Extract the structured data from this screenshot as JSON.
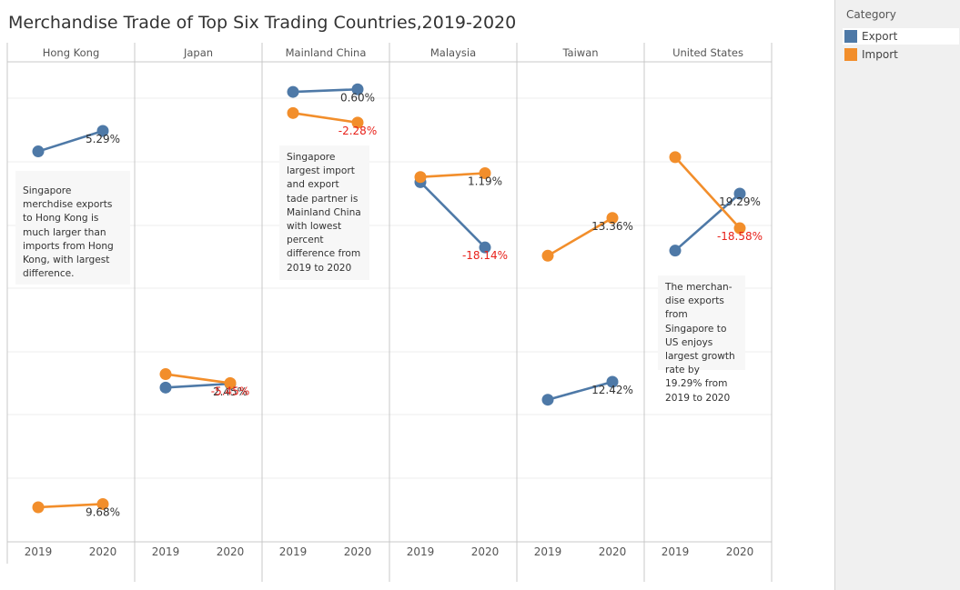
{
  "title": "Merchandise Trade of Top Six Trading Countries,2019-2020",
  "legend": {
    "title": "Category",
    "items": [
      {
        "label": "Export",
        "color": "#4e79a7"
      },
      {
        "label": "Import",
        "color": "#f28e2b"
      }
    ]
  },
  "chart_data": {
    "type": "line",
    "categories": [
      "2019",
      "2020"
    ],
    "panels": [
      {
        "name": "Hong Kong",
        "series": [
          {
            "name": "Export",
            "values": [
              61,
              64.2
            ],
            "label": "5.29%"
          },
          {
            "name": "Import",
            "values": [
              5.4,
              5.9
            ],
            "label": "9.68%"
          }
        ]
      },
      {
        "name": "Japan",
        "series": [
          {
            "name": "Export",
            "values": [
              24.1,
              24.7
            ],
            "label": "2.45%"
          },
          {
            "name": "Import",
            "values": [
              26.2,
              24.8
            ],
            "label": "-5.45%"
          }
        ]
      },
      {
        "name": "Mainland China",
        "series": [
          {
            "name": "Export",
            "values": [
              70.3,
              70.7
            ],
            "label": "0.60%"
          },
          {
            "name": "Import",
            "values": [
              67.0,
              65.5
            ],
            "label": "-2.28%"
          }
        ]
      },
      {
        "name": "Malaysia",
        "series": [
          {
            "name": "Export",
            "values": [
              56.2,
              46.0
            ],
            "label": "-18.14%"
          },
          {
            "name": "Import",
            "values": [
              57.0,
              57.6
            ],
            "label": "1.19%"
          }
        ]
      },
      {
        "name": "Taiwan",
        "series": [
          {
            "name": "Export",
            "values": [
              22.2,
              25.0
            ],
            "label": "12.42%"
          },
          {
            "name": "Import",
            "values": [
              44.7,
              50.6
            ],
            "label": "13.36%"
          }
        ]
      },
      {
        "name": "United States",
        "series": [
          {
            "name": "Export",
            "values": [
              45.5,
              54.4
            ],
            "label": "19.29%"
          },
          {
            "name": "Import",
            "values": [
              60.1,
              49.0
            ],
            "label": "-18.58%"
          }
        ]
      }
    ],
    "label_colors": {
      "positive": "#333333",
      "negative": "#e8221b"
    },
    "ylim": [
      0,
      75
    ],
    "grid": true,
    "legend_position": "right"
  },
  "notes": [
    {
      "text": "Singapore merchdise exports to Hong Kong is much larger than imports from Hong Kong, with largest difference."
    },
    {
      "text": "Singapore largest import and export tade partner is Mainland China with lowest percent difference from 2019 to 2020"
    },
    {
      "text": "The merchan-dise exports from Singapore to US enjoys largest growth rate by 19.29% from 2019 to 2020"
    }
  ]
}
